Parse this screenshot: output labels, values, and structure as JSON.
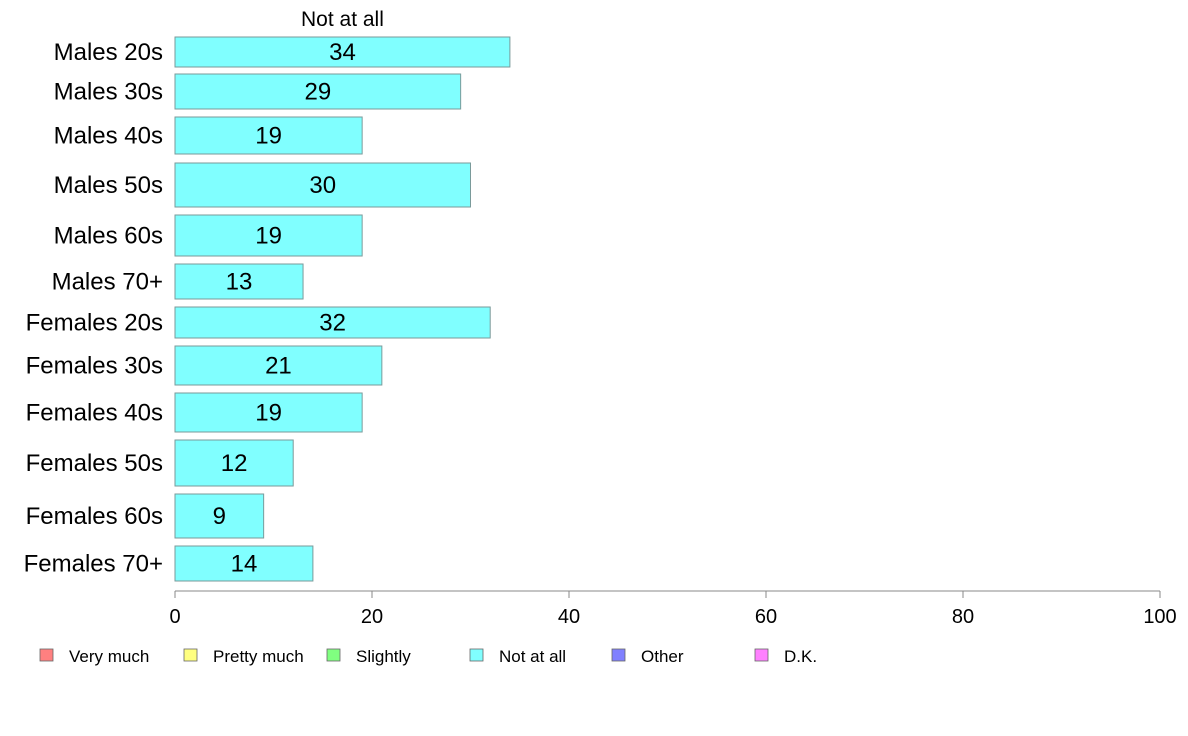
{
  "chart_data": {
    "type": "bar",
    "orientation": "horizontal",
    "stacked": true,
    "top_label": "Not at all",
    "categories": [
      "Males 20s",
      "Males 30s",
      "Males 40s",
      "Males 50s",
      "Males 60s",
      "Males 70+",
      "Females 20s",
      "Females 30s",
      "Females 40s",
      "Females 50s",
      "Females 60s",
      "Females 70+"
    ],
    "series": [
      {
        "name": "Not at all",
        "color": "#80ffff",
        "values": [
          34,
          29,
          19,
          30,
          19,
          13,
          32,
          21,
          19,
          12,
          9,
          14
        ]
      }
    ],
    "xlim": [
      0,
      100
    ],
    "xticks": [
      0,
      20,
      40,
      60,
      80,
      100
    ],
    "grid": false,
    "legend_position": "bottom",
    "legend": [
      {
        "label": "Very much",
        "color": "#ff8080"
      },
      {
        "label": "Pretty much",
        "color": "#ffff80"
      },
      {
        "label": "Slightly",
        "color": "#80ff80"
      },
      {
        "label": "Not at all",
        "color": "#80ffff"
      },
      {
        "label": "Other",
        "color": "#8080ff"
      },
      {
        "label": "D.K.",
        "color": "#ff80ff"
      }
    ]
  }
}
